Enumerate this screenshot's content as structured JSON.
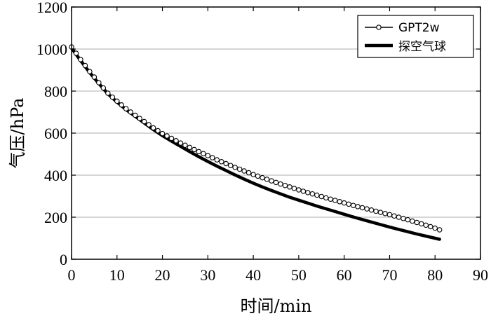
{
  "chart_data": {
    "type": "line",
    "xlabel": "时间/min",
    "ylabel": "气压/hPa",
    "xlim": [
      0,
      90
    ],
    "ylim": [
      0,
      1200
    ],
    "xticks": [
      0,
      10,
      20,
      30,
      40,
      50,
      60,
      70,
      80,
      90
    ],
    "yticks": [
      0,
      200,
      400,
      600,
      800,
      1000,
      1200
    ],
    "grid": "horizontal",
    "legend_position": "top-right",
    "series": [
      {
        "name": "GPT2w",
        "style": "line-with-circle-markers",
        "color": "#000000",
        "x": [
          0,
          2,
          4,
          6,
          8,
          10,
          12,
          14,
          16,
          18,
          20,
          22,
          24,
          26,
          28,
          30,
          32,
          34,
          36,
          38,
          40,
          42,
          44,
          46,
          48,
          50,
          52,
          54,
          56,
          58,
          60,
          62,
          64,
          66,
          68,
          70,
          72,
          74,
          76,
          78,
          80,
          81
        ],
        "y": [
          1010,
          950,
          893,
          840,
          790,
          752,
          716,
          685,
          655,
          625,
          598,
          575,
          553,
          532,
          512,
          493,
          473,
          455,
          437,
          420,
          403,
          388,
          373,
          358,
          344,
          330,
          317,
          305,
          292,
          280,
          268,
          256,
          245,
          234,
          223,
          212,
          200,
          188,
          175,
          162,
          148,
          140
        ]
      },
      {
        "name": "探空气球",
        "style": "thick-line",
        "color": "#000000",
        "x": [
          0,
          2,
          4,
          6,
          8,
          10,
          12,
          14,
          16,
          18,
          20,
          22,
          24,
          26,
          28,
          30,
          32,
          34,
          36,
          38,
          40,
          42,
          44,
          46,
          48,
          50,
          52,
          54,
          56,
          58,
          60,
          62,
          64,
          66,
          68,
          70,
          72,
          74,
          76,
          78,
          80,
          81
        ],
        "y": [
          1005,
          945,
          888,
          836,
          787,
          748,
          712,
          680,
          648,
          617,
          588,
          562,
          537,
          512,
          488,
          465,
          443,
          422,
          401,
          381,
          362,
          344,
          327,
          311,
          295,
          281,
          267,
          253,
          240,
          227,
          214,
          201,
          189,
          177,
          165,
          153,
          142,
          131,
          120,
          110,
          100,
          95
        ]
      }
    ]
  }
}
